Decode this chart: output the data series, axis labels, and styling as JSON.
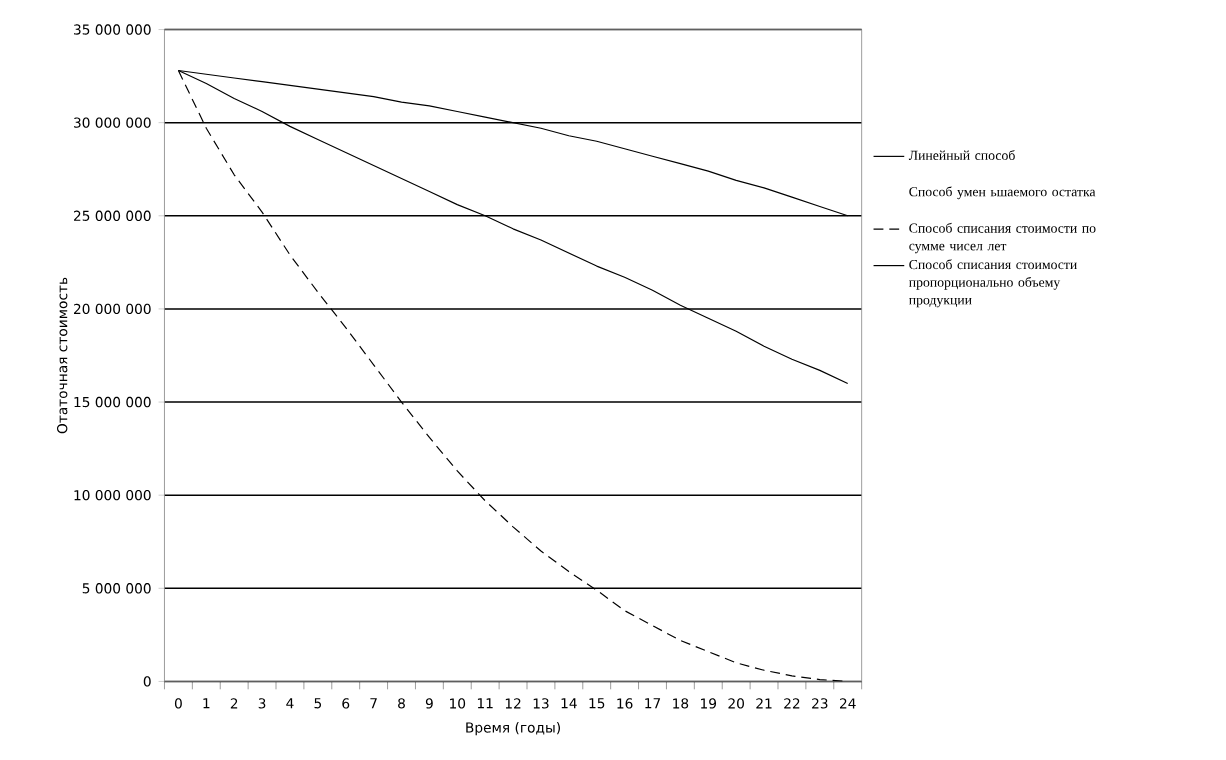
{
  "chart_data": {
    "type": "line",
    "xlabel": "Время (годы)",
    "ylabel": "Отаточная стоимость",
    "categories": [
      "0",
      "1",
      "2",
      "3",
      "4",
      "5",
      "6",
      "7",
      "8",
      "9",
      "10",
      "11",
      "12",
      "13",
      "14",
      "15",
      "16",
      "17",
      "18",
      "19",
      "20",
      "21",
      "22",
      "23",
      "24"
    ],
    "series": [
      {
        "name": "Линейный способ",
        "color": "#000000",
        "line_style": "solid",
        "values": [
          32800000,
          32600000,
          32400000,
          32200000,
          32000000,
          31800000,
          31600000,
          31400000,
          31100000,
          30900000,
          30600000,
          30300000,
          30000000,
          29700000,
          29300000,
          29000000,
          28600000,
          28200000,
          27800000,
          27400000,
          26900000,
          26500000,
          26000000,
          25500000,
          25000000
        ]
      },
      {
        "name": "Способ умен ьшаемого остатка",
        "line_style": "solid",
        "values": [
          null,
          null,
          null,
          null,
          null,
          null,
          null,
          null,
          null,
          null,
          null,
          null,
          null,
          null,
          null,
          null,
          null,
          null,
          null,
          null,
          null,
          null,
          null,
          null,
          null
        ]
      },
      {
        "name": "Способ списания стоимости по сумме чисел лет",
        "color": "#000000",
        "line_style": "dashed",
        "values": [
          32800000,
          29700000,
          27200000,
          25200000,
          22900000,
          20900000,
          19000000,
          17000000,
          15000000,
          13100000,
          11300000,
          9700000,
          8300000,
          7000000,
          5900000,
          4900000,
          3800000,
          3000000,
          2200000,
          1600000,
          1000000,
          600000,
          300000,
          100000,
          0
        ]
      },
      {
        "name": "Способ списания стоимости пропорционально объему продукции",
        "color": "#000000",
        "line_style": "solid",
        "values": [
          32800000,
          32100000,
          31300000,
          30600000,
          29800000,
          29100000,
          28400000,
          27700000,
          27000000,
          26300000,
          25600000,
          25000000,
          24300000,
          23700000,
          23000000,
          22300000,
          21700000,
          21000000,
          20200000,
          19500000,
          18800000,
          18000000,
          17300000,
          16700000,
          16000000
        ]
      }
    ],
    "ylim": [
      0,
      35000000
    ],
    "yticks": [
      {
        "value": 0,
        "label": "0"
      },
      {
        "value": 5000000,
        "label": "5 000 000"
      },
      {
        "value": 10000000,
        "label": "10 000 000"
      },
      {
        "value": 15000000,
        "label": "15 000 000"
      },
      {
        "value": 20000000,
        "label": "20 000 000"
      },
      {
        "value": 25000000,
        "label": "25 000 000"
      },
      {
        "value": 30000000,
        "label": "30 000 000"
      },
      {
        "value": 35000000,
        "label": "35 000 000"
      }
    ],
    "grid": "y",
    "legend": "right",
    "marker": "none"
  }
}
